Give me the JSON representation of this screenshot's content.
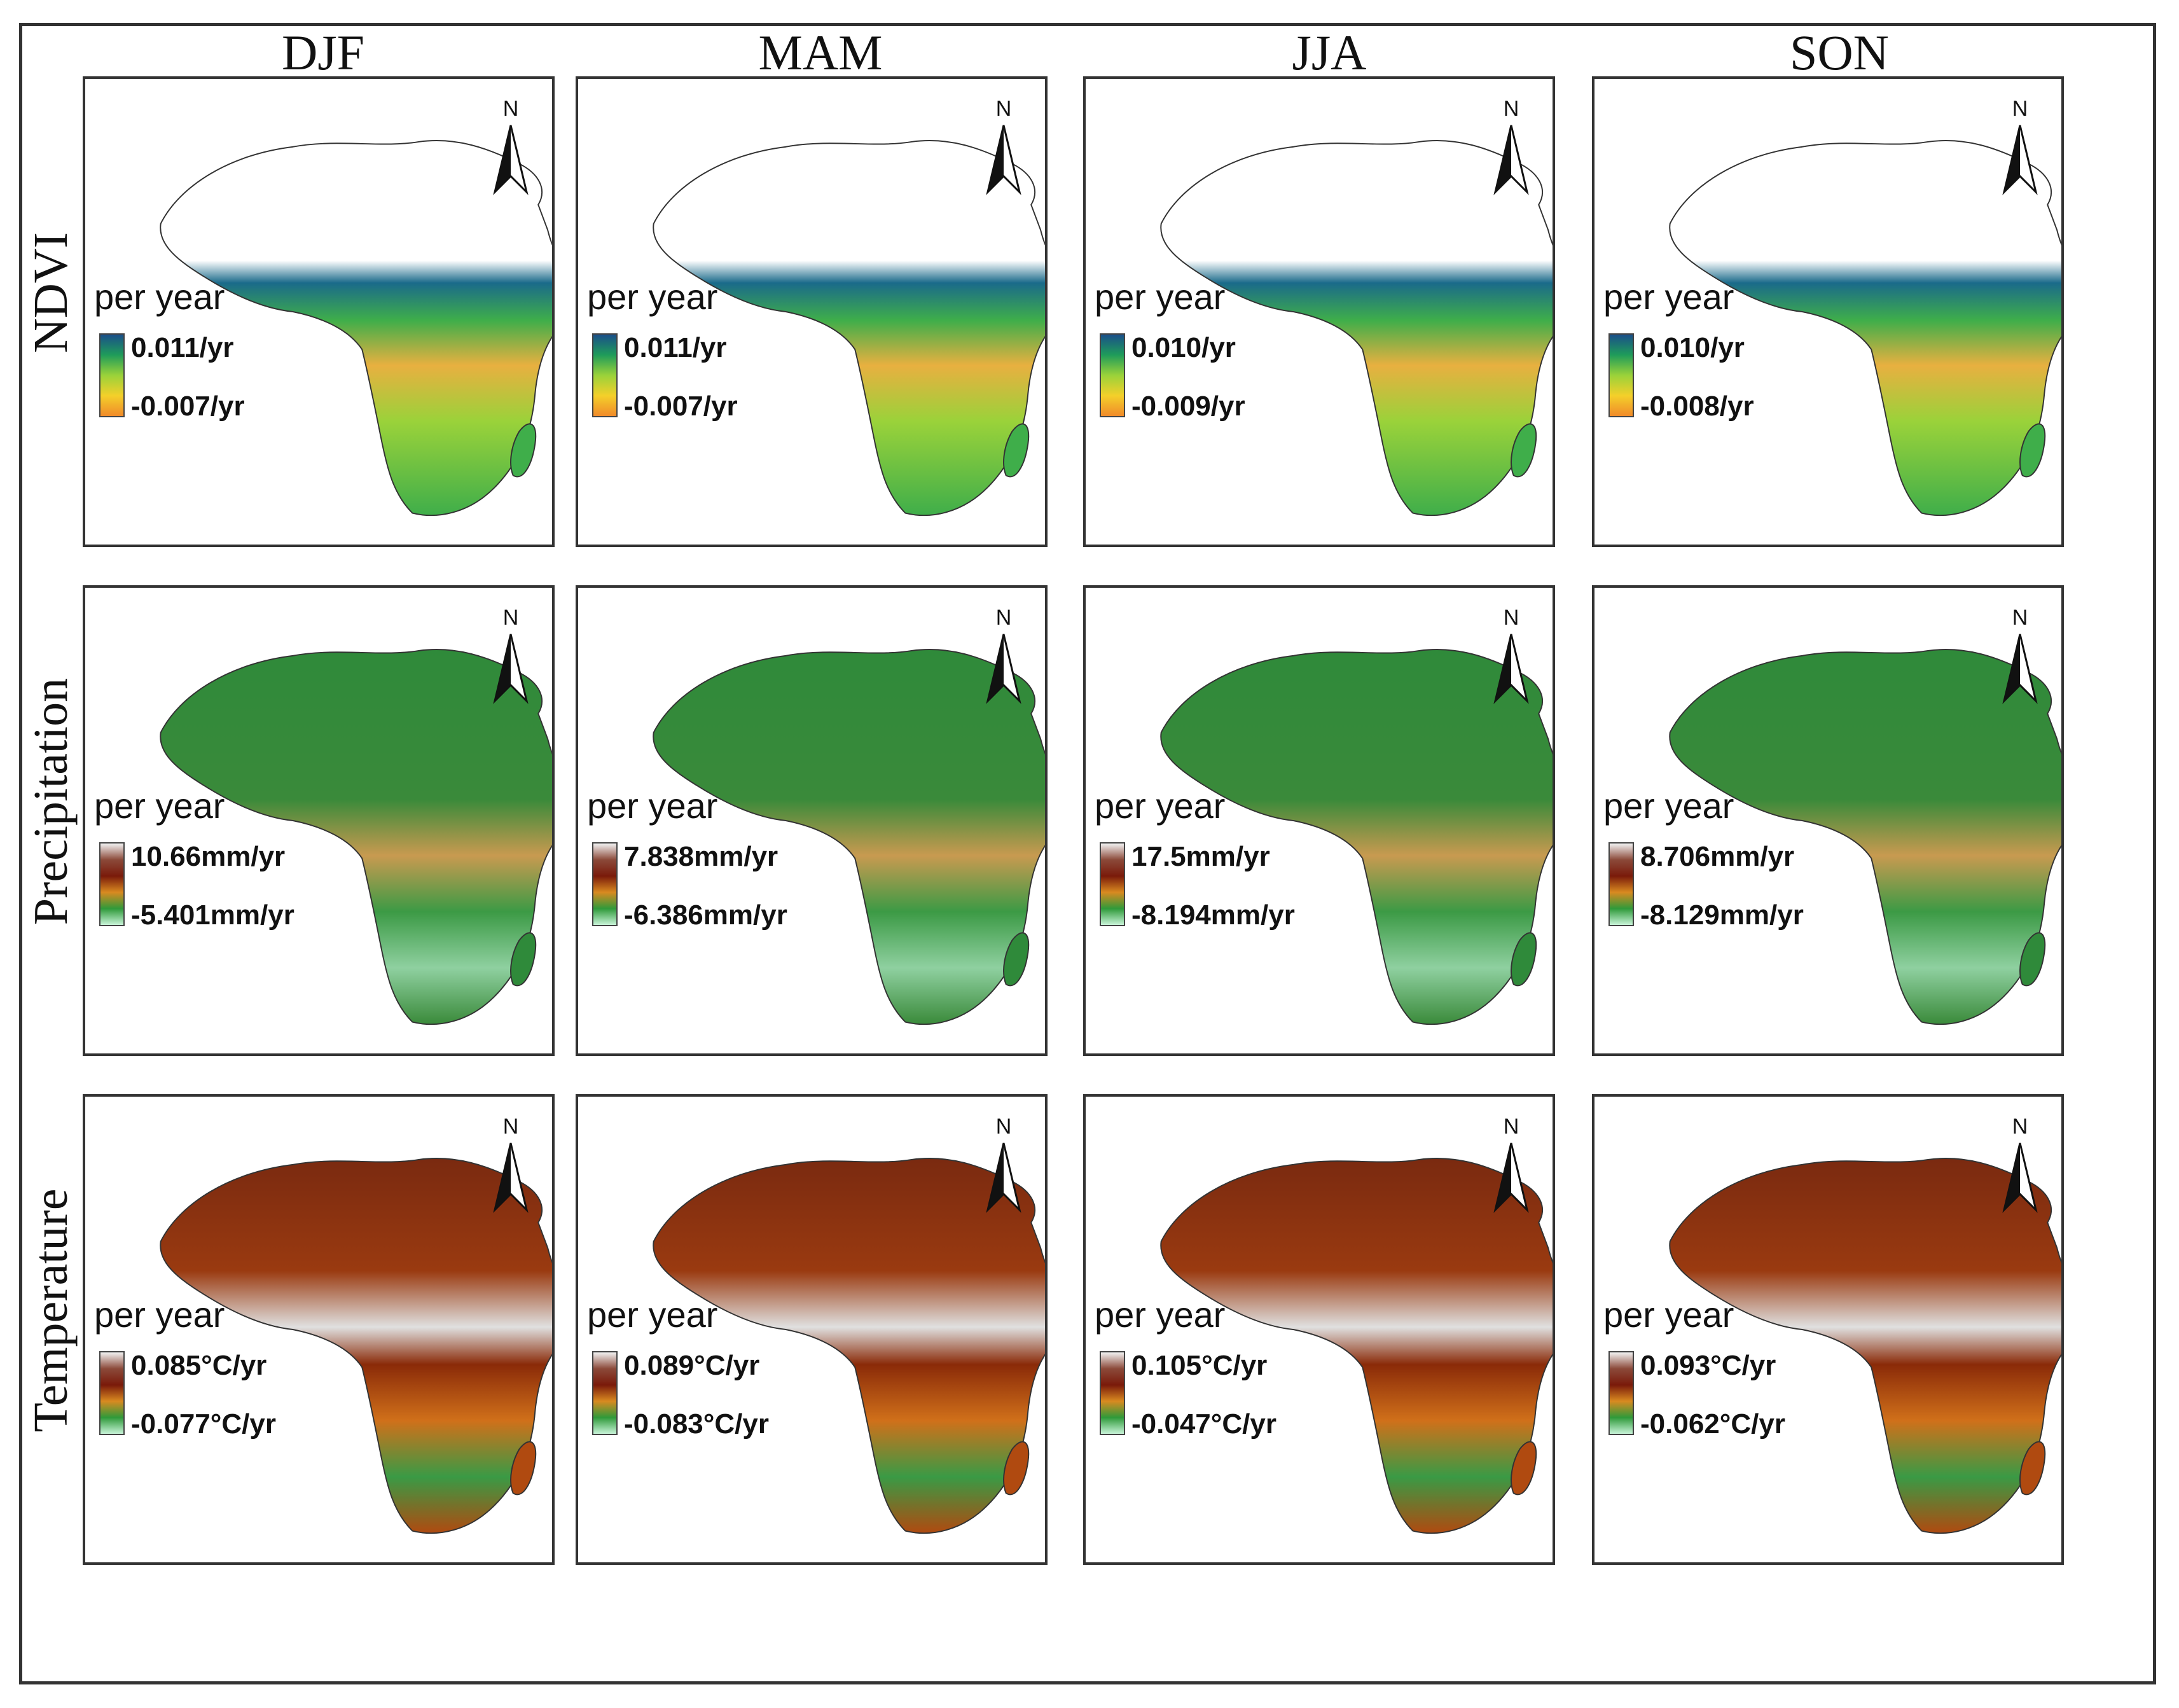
{
  "seasons": [
    "DJF",
    "MAM",
    "JJA",
    "SON"
  ],
  "rows": [
    {
      "name": "NDVI",
      "ramp": [
        "#1a4f8a",
        "#1f9c5a",
        "#9ad23a",
        "#f4d02a",
        "#f08a2a"
      ],
      "panels": [
        {
          "per_year": "per year",
          "max": "0.011/yr",
          "min": "-0.007/yr"
        },
        {
          "per_year": "per year",
          "max": "0.011/yr",
          "min": "-0.007/yr"
        },
        {
          "per_year": "per year",
          "max": "0.010/yr",
          "min": "-0.009/yr"
        },
        {
          "per_year": "per year",
          "max": "0.010/yr",
          "min": "-0.008/yr"
        }
      ]
    },
    {
      "name": "Precipitation",
      "ramp": [
        "#f2f2f2",
        "#8b4a3a",
        "#7a1a0a",
        "#d98a20",
        "#2f9a3a",
        "#c8f4d8"
      ],
      "panels": [
        {
          "per_year": "per year",
          "max": "10.66mm/yr",
          "min": "-5.401mm/yr"
        },
        {
          "per_year": "per year",
          "max": "7.838mm/yr",
          "min": "-6.386mm/yr"
        },
        {
          "per_year": "per year",
          "max": "17.5mm/yr",
          "min": "-8.194mm/yr"
        },
        {
          "per_year": "per year",
          "max": "8.706mm/yr",
          "min": "-8.129mm/yr"
        }
      ]
    },
    {
      "name": "Temperature",
      "ramp": [
        "#f2f2f2",
        "#8b4a3a",
        "#7a1a0a",
        "#d98a20",
        "#2f9a3a",
        "#c8f4d8"
      ],
      "panels": [
        {
          "per_year": "per year",
          "max": "0.085°C/yr",
          "min": "-0.077°C/yr"
        },
        {
          "per_year": "per year",
          "max": "0.089°C/yr",
          "min": "-0.083°C/yr"
        },
        {
          "per_year": "per year",
          "max": "0.105°C/yr",
          "min": "-0.047°C/yr"
        },
        {
          "per_year": "per year",
          "max": "0.093°C/yr",
          "min": "-0.062°C/yr"
        }
      ]
    }
  ],
  "north_label": "N",
  "map_fills": {
    "NDVI": [
      "#ffffff",
      "#3fae4a",
      "#e0a03a",
      "#3fae4a"
    ],
    "Precipitation": [
      "#2f8a3a",
      "#4a9a3a",
      "#3a8a3a",
      "#2f8a3a"
    ],
    "Temperature": [
      "#9a3a10",
      "#a83c10",
      "#8a2a08",
      "#b04a10"
    ]
  }
}
